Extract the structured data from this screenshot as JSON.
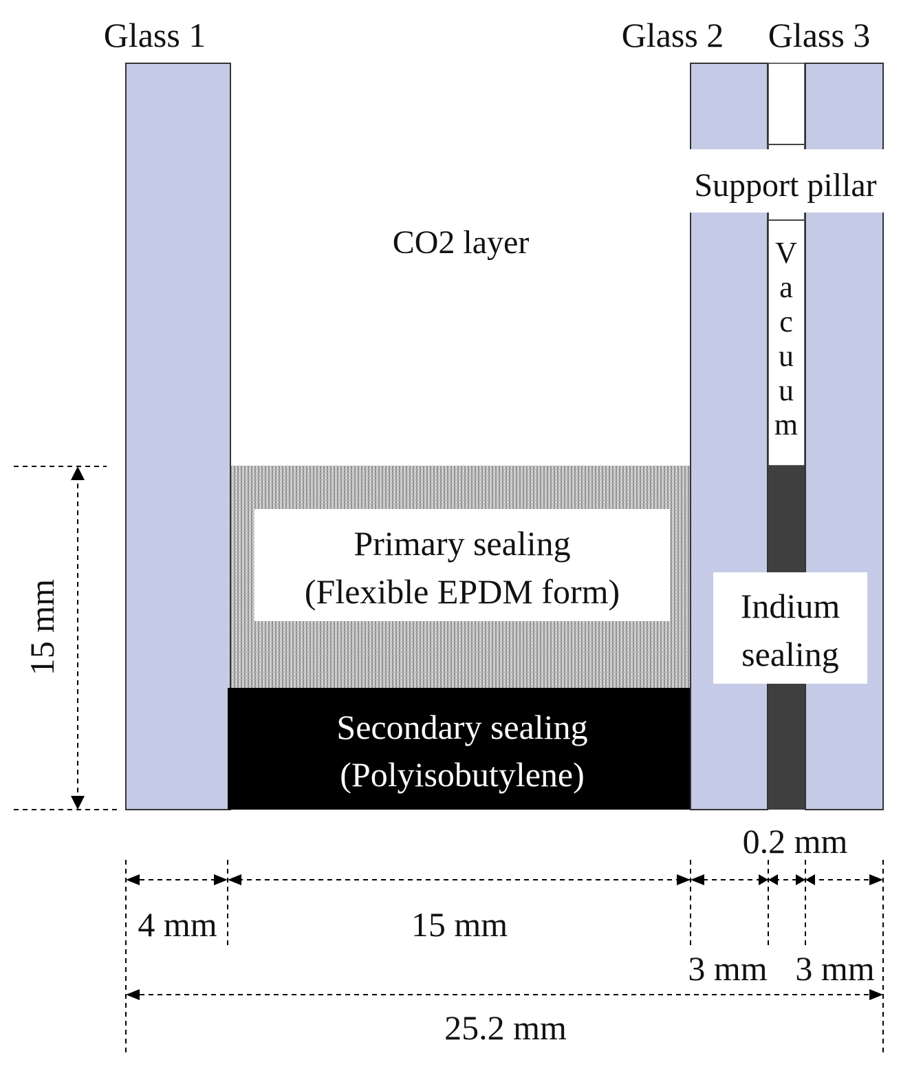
{
  "labels": {
    "glass_1": "Glass 1",
    "glass_2": "Glass 2",
    "glass_3": "Glass 3",
    "support_pillar": "Support pillar",
    "co2_layer": "CO2 layer",
    "vacuum": [
      "V",
      "a",
      "c",
      "u",
      "u",
      "m"
    ],
    "primary_sealing": "Primary sealing",
    "primary_sealing_material": "(Flexible EPDM form)",
    "secondary_sealing": "Secondary sealing",
    "secondary_sealing_material": "(Polyisobutylene)",
    "indium_line1": "Indium",
    "indium_line2": "sealing"
  },
  "dimensions": {
    "height": "15 mm",
    "gap_thickness": "0.2 mm",
    "glass_1_thickness": "4 mm",
    "cavity_width": "15 mm",
    "glass_2_thickness": "3 mm",
    "glass_3_thickness": "3 mm",
    "total_width": "25.2 mm"
  },
  "colors": {
    "glass": "#c5cbe6",
    "secondary_sealing": "#000000",
    "indium_sealing": "#3f3f3f",
    "primary_sealing_texture": "#9a9a9a"
  }
}
